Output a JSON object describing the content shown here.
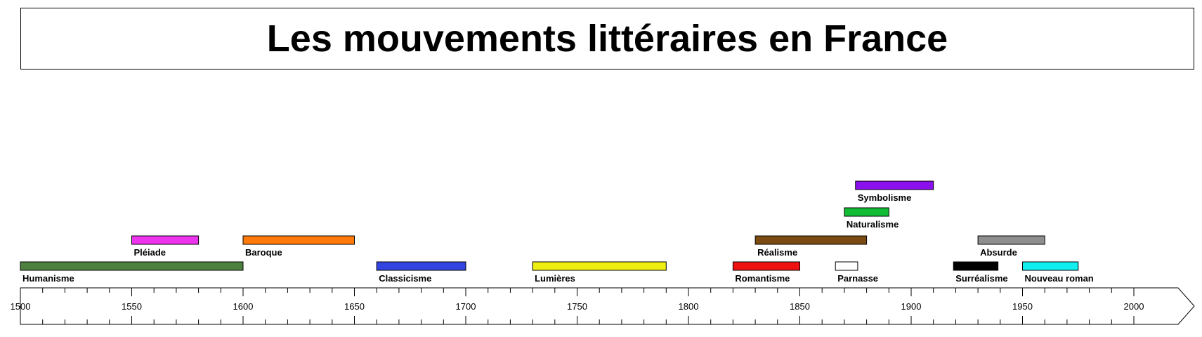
{
  "title": "Les mouvements littéraires en France",
  "axis": {
    "min": 1500,
    "max": 2000,
    "major_step": 50,
    "minor_step": 10,
    "tick_labels": [
      "1500",
      "1550",
      "1600",
      "1650",
      "1700",
      "1750",
      "1800",
      "1850",
      "1900",
      "1950",
      "2000"
    ]
  },
  "chart_data": {
    "type": "timeline",
    "title": "Les mouvements littéraires en France",
    "movements": [
      {
        "name": "Humanisme",
        "start": 1500,
        "end": 1600,
        "level": 0,
        "color": "#4e8040"
      },
      {
        "name": "Pléiade",
        "start": 1550,
        "end": 1580,
        "level": 1,
        "color": "#ee33ee"
      },
      {
        "name": "Baroque",
        "start": 1600,
        "end": 1650,
        "level": 1,
        "color": "#ff7a0a"
      },
      {
        "name": "Classicisme",
        "start": 1660,
        "end": 1700,
        "level": 0,
        "color": "#3344e0"
      },
      {
        "name": "Lumières",
        "start": 1730,
        "end": 1790,
        "level": 0,
        "color": "#eeee11"
      },
      {
        "name": "Romantisme",
        "start": 1820,
        "end": 1850,
        "level": 0,
        "color": "#ee1111"
      },
      {
        "name": "Réalisme",
        "start": 1830,
        "end": 1880,
        "level": 1,
        "color": "#7a4a12"
      },
      {
        "name": "Parnasse",
        "start": 1866,
        "end": 1876,
        "level": 0,
        "color": "#ffffff"
      },
      {
        "name": "Naturalisme",
        "start": 1870,
        "end": 1890,
        "level": 2,
        "color": "#11bb33"
      },
      {
        "name": "Symbolisme",
        "start": 1875,
        "end": 1910,
        "level": 3,
        "color": "#8a11ee"
      },
      {
        "name": "Surréalisme",
        "start": 1919,
        "end": 1939,
        "level": 0,
        "color": "#000000"
      },
      {
        "name": "Absurde",
        "start": 1930,
        "end": 1960,
        "level": 1,
        "color": "#8e8e8e"
      },
      {
        "name": "Nouveau roman",
        "start": 1950,
        "end": 1975,
        "level": 0,
        "color": "#11eeee"
      }
    ]
  }
}
